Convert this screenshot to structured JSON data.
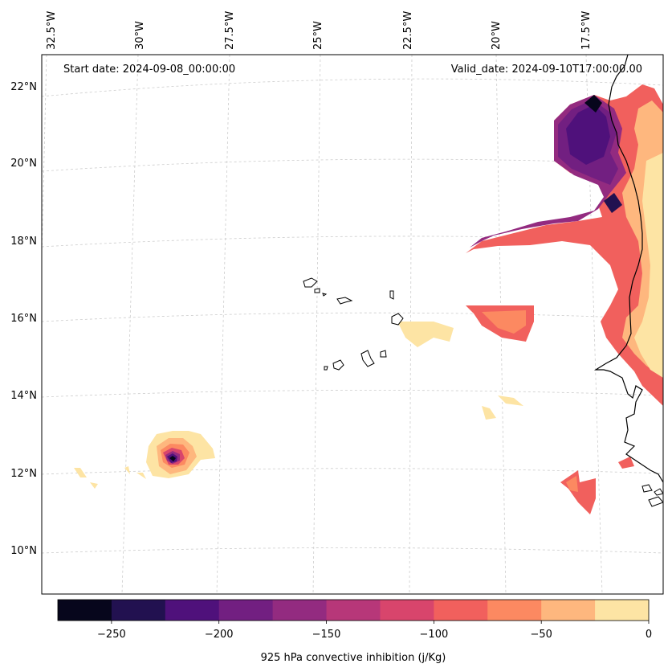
{
  "header": {
    "start_date": "Start date: 2024-09-08_00:00:00",
    "valid_date": "Valid_date: 2024-09-10T17:00:00.00"
  },
  "lon_labels": [
    "32.5°W",
    "30°W",
    "27.5°W",
    "25°W",
    "22.5°W",
    "20°W",
    "17.5°W"
  ],
  "lat_labels": [
    "22°N",
    "20°N",
    "18°N",
    "16°N",
    "14°N",
    "12°N",
    "10°N"
  ],
  "colorbar": {
    "label": "925 hPa convective inhibition (j/Kg)",
    "ticks": [
      "−250",
      "−200",
      "−150",
      "−100",
      "−50",
      "0"
    ],
    "levels": [
      -275,
      -250,
      -225,
      -200,
      -175,
      -150,
      -125,
      -100,
      -75,
      -50,
      -25,
      0
    ],
    "colors": [
      "#07061c",
      "#221150",
      "#4f117b",
      "#721f81",
      "#932b80",
      "#b73779",
      "#d8456c",
      "#f1605d",
      "#fc8961",
      "#feb77e",
      "#fde4a4"
    ]
  },
  "icons": {
    "coastline": "coastline-icon",
    "islands": "cape-verde-islands-icon"
  }
}
